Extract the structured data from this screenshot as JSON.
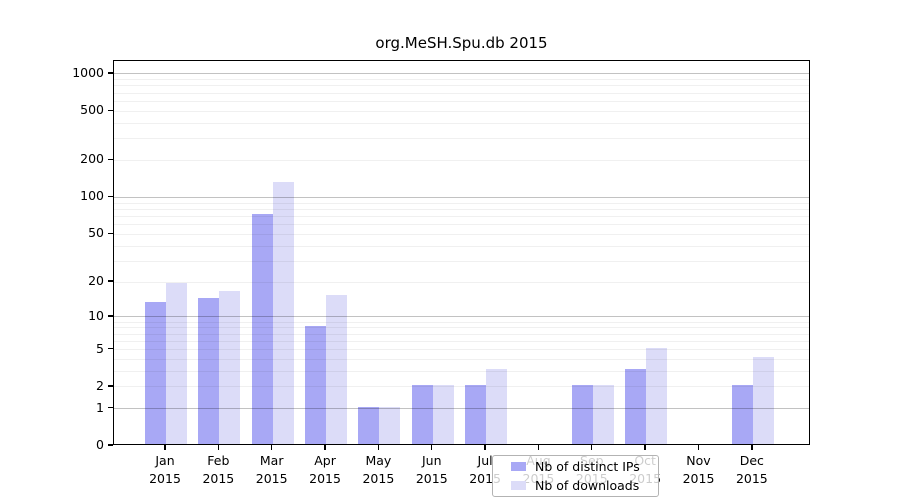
{
  "title": "org.MeSH.Spu.db 2015",
  "colors": {
    "ips": "#a8a8f5",
    "downloads": "#dcdcf8",
    "axis": "#000000",
    "grid_major": "#c2c2c2",
    "grid_minor": "#efefef",
    "legend_border": "#b3b3b3"
  },
  "legend": {
    "items": [
      {
        "label": "Nb of distinct IPs",
        "color_key": "ips"
      },
      {
        "label": "Nb of downloads",
        "color_key": "downloads"
      }
    ]
  },
  "chart_data": {
    "type": "bar",
    "title": "org.MeSH.Spu.db 2015",
    "xlabel": "",
    "ylabel": "",
    "scale": "log10(1+x)",
    "ylim": [
      0,
      1280
    ],
    "grid": "minor+major horizontal",
    "legend_position": "bottom-center-inside",
    "categories": [
      "Jan 2015",
      "Feb 2015",
      "Mar 2015",
      "Apr 2015",
      "May 2015",
      "Jun 2015",
      "Jul 2015",
      "Aug 2015",
      "Sep 2015",
      "Oct 2015",
      "Nov 2015",
      "Dec 2015"
    ],
    "yticks": [
      0,
      1,
      2,
      5,
      10,
      20,
      50,
      100,
      200,
      500,
      1000
    ],
    "grid_major_values": [
      1,
      10,
      100,
      1000
    ],
    "grid_minor_values": [
      2,
      3,
      4,
      5,
      6,
      7,
      8,
      9,
      20,
      30,
      40,
      50,
      60,
      70,
      80,
      90,
      200,
      300,
      400,
      500,
      600,
      700,
      800,
      900
    ],
    "series": [
      {
        "name": "Nb of distinct IPs",
        "values": [
          13,
          14,
          71,
          8,
          1,
          2,
          2,
          0,
          2,
          3,
          0,
          2
        ]
      },
      {
        "name": "Nb of downloads",
        "values": [
          19,
          16,
          130,
          15,
          1,
          2,
          3,
          0,
          2,
          5,
          0,
          4
        ]
      }
    ]
  }
}
